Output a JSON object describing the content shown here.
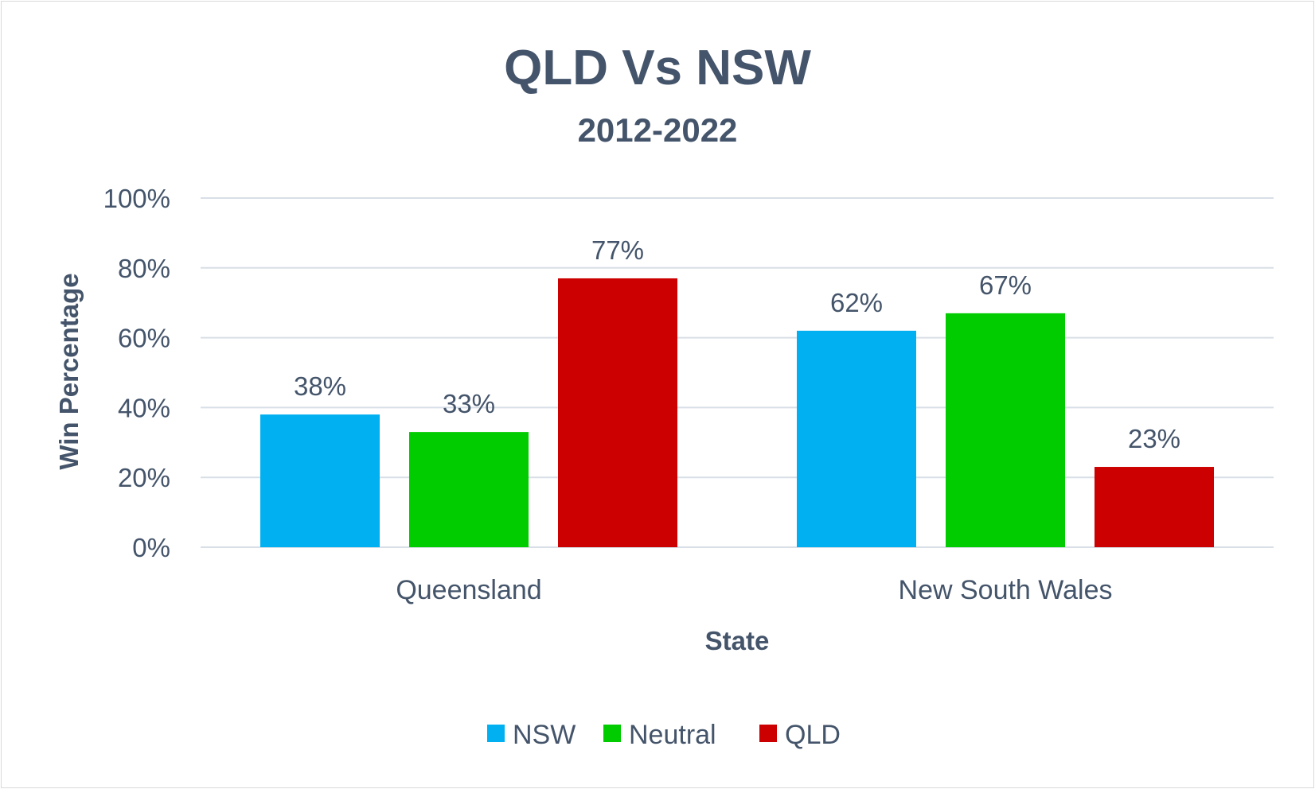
{
  "chart_data": {
    "type": "bar",
    "title": "QLD Vs NSW",
    "subtitle": "2012-2022",
    "xlabel": "State",
    "ylabel": "Win Percentage",
    "categories": [
      "Queensland",
      "New South Wales"
    ],
    "series": [
      {
        "name": "NSW",
        "values": [
          38,
          62
        ],
        "color": "#00b0f0",
        "labels": [
          "38%",
          "62%"
        ]
      },
      {
        "name": "Neutral",
        "values": [
          33,
          67
        ],
        "color": "#00cc00",
        "labels": [
          "33%",
          "67%"
        ]
      },
      {
        "name": "QLD",
        "values": [
          77,
          23
        ],
        "color": "#cc0000",
        "labels": [
          "77%",
          "23%"
        ]
      }
    ],
    "ylim": [
      0,
      100
    ],
    "yticks": [
      0,
      20,
      40,
      60,
      80,
      100
    ],
    "ytick_labels": [
      "0%",
      "20%",
      "40%",
      "60%",
      "80%",
      "100%"
    ],
    "grid": true,
    "legend_position": "bottom"
  }
}
